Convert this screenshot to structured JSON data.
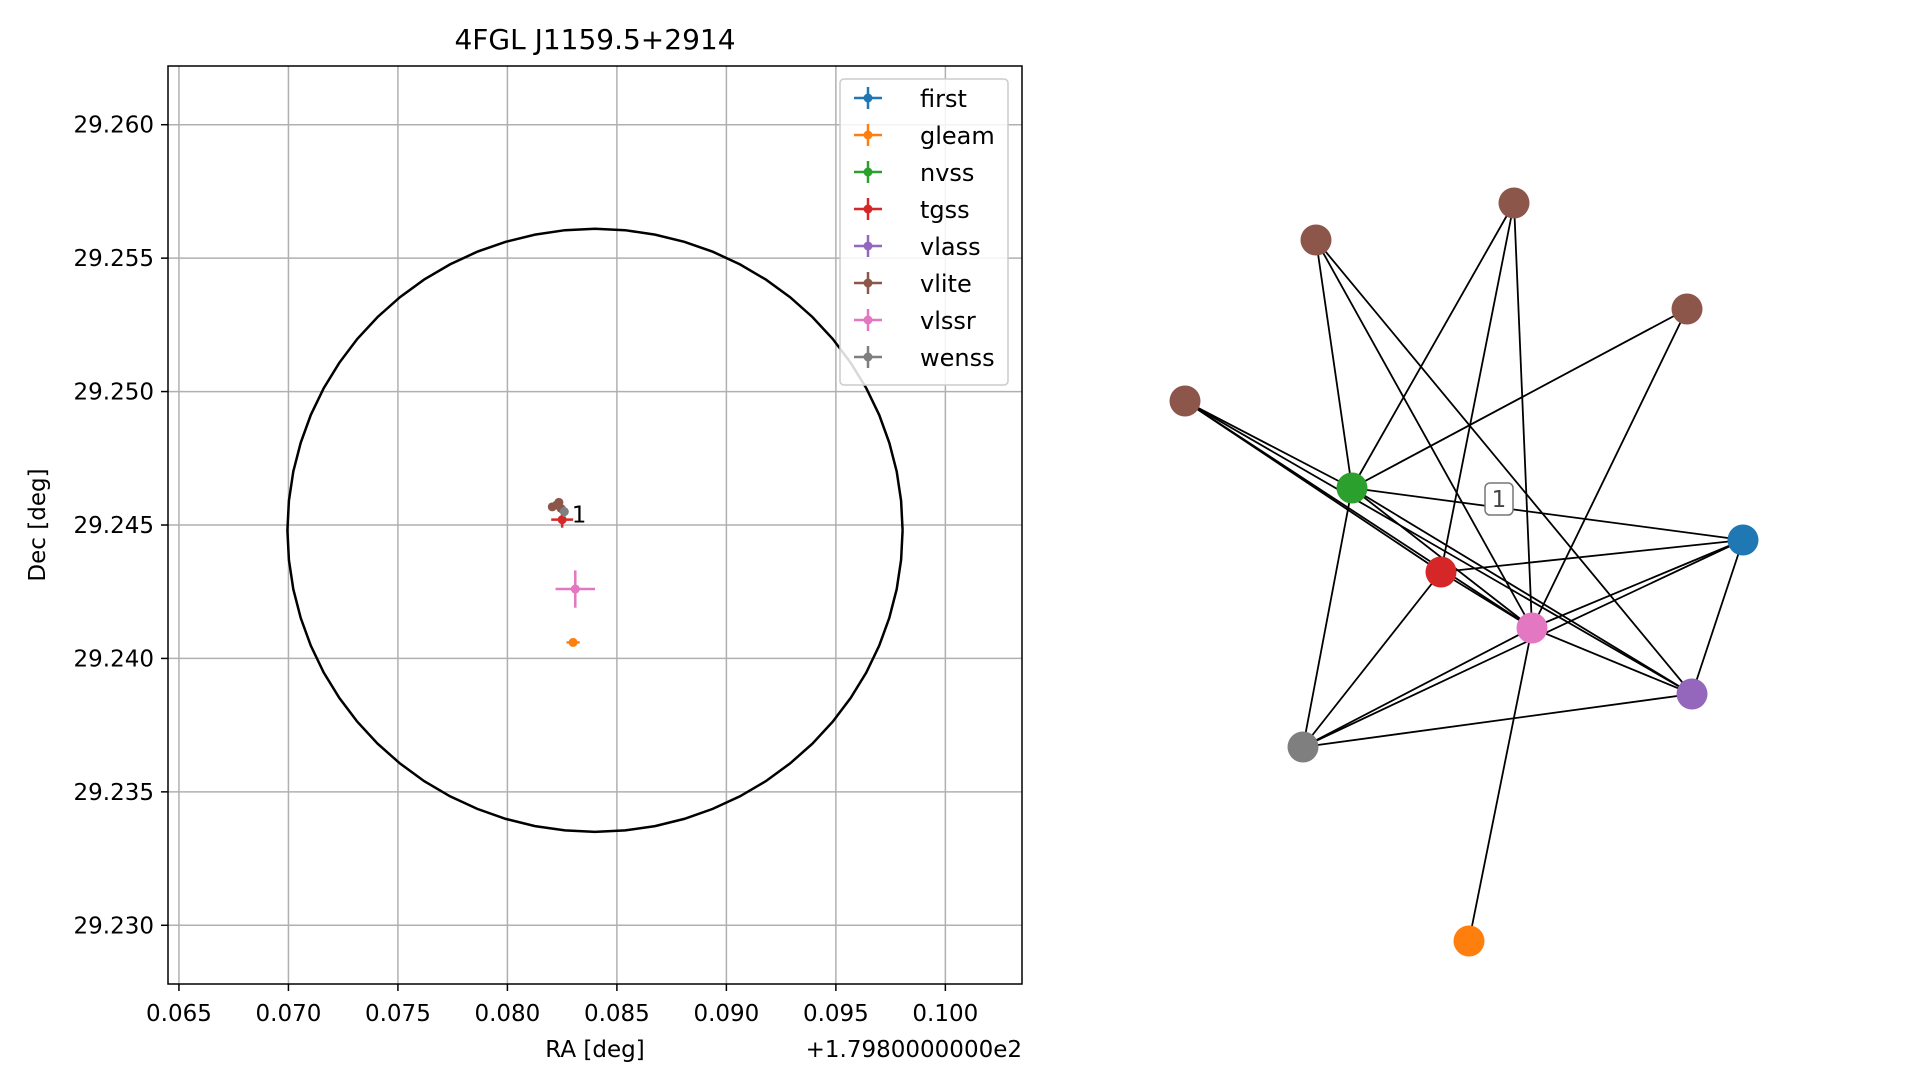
{
  "chart_data": [
    {
      "type": "scatter",
      "title": "4FGL J1159.5+2914",
      "xlabel": "RA [deg]",
      "ylabel": "Dec [deg]",
      "x_offset_label": "+1.7980000000e2",
      "xlim": [
        0.0645,
        0.1035
      ],
      "ylim": [
        29.2278,
        29.2622
      ],
      "xticks": [
        0.065,
        0.07,
        0.075,
        0.08,
        0.085,
        0.09,
        0.095,
        0.1
      ],
      "xtick_labels": [
        "0.065",
        "0.070",
        "0.075",
        "0.080",
        "0.085",
        "0.090",
        "0.095",
        "0.100"
      ],
      "yticks": [
        29.23,
        29.235,
        29.24,
        29.245,
        29.25,
        29.255,
        29.26
      ],
      "ytick_labels": [
        "29.230",
        "29.235",
        "29.240",
        "29.245",
        "29.250",
        "29.255",
        "29.260"
      ],
      "grid": true,
      "legend_position": "top-right",
      "circle": {
        "center": [
          0.084,
          29.2448
        ],
        "radius_dec": 0.0113,
        "color": "#000000"
      },
      "annotation": {
        "text": "1",
        "x": 0.0828,
        "y": 29.2454
      },
      "series": [
        {
          "name": "first",
          "color": "#1f77b4",
          "points": []
        },
        {
          "name": "gleam",
          "color": "#ff7f0e",
          "points": [
            {
              "x": 0.083,
              "y": 29.2406,
              "xerr": 0.0003,
              "yerr": 0.0001
            }
          ]
        },
        {
          "name": "nvss",
          "color": "#2ca02c",
          "points": []
        },
        {
          "name": "tgss",
          "color": "#d62728",
          "points": [
            {
              "x": 0.0825,
              "y": 29.2452,
              "xerr": 0.0005,
              "yerr": 0.0003
            }
          ]
        },
        {
          "name": "vlass",
          "color": "#9467bd",
          "points": []
        },
        {
          "name": "vlite",
          "color": "#8c564b",
          "points": [
            {
              "x": 0.08205,
              "y": 29.24568,
              "xerr": 0,
              "yerr": 0
            },
            {
              "x": 0.08225,
              "y": 29.24575,
              "xerr": 0,
              "yerr": 0
            },
            {
              "x": 0.08245,
              "y": 29.24562,
              "xerr": 0,
              "yerr": 0
            },
            {
              "x": 0.08235,
              "y": 29.24585,
              "xerr": 0,
              "yerr": 0
            }
          ]
        },
        {
          "name": "vlssr",
          "color": "#e377c2",
          "points": [
            {
              "x": 0.0831,
              "y": 29.2426,
              "xerr": 0.0009,
              "yerr": 0.0007
            }
          ]
        },
        {
          "name": "wenss",
          "color": "#7f7f7f",
          "points": [
            {
              "x": 0.0826,
              "y": 29.2455,
              "xerr": 0,
              "yerr": 0.0002
            }
          ]
        }
      ]
    },
    {
      "type": "network",
      "edge_label": "1",
      "nodes": [
        {
          "id": "first",
          "color": "#1f77b4"
        },
        {
          "id": "gleam",
          "color": "#ff7f0e"
        },
        {
          "id": "nvss",
          "color": "#2ca02c"
        },
        {
          "id": "tgss",
          "color": "#d62728"
        },
        {
          "id": "vlass",
          "color": "#9467bd"
        },
        {
          "id": "vlite1",
          "color": "#8c564b"
        },
        {
          "id": "vlite2",
          "color": "#8c564b"
        },
        {
          "id": "vlite3",
          "color": "#8c564b"
        },
        {
          "id": "vlite4",
          "color": "#8c564b"
        },
        {
          "id": "vlssr",
          "color": "#e377c2"
        },
        {
          "id": "wenss",
          "color": "#7f7f7f"
        }
      ],
      "edges": [
        [
          "vlite4",
          "nvss"
        ],
        [
          "vlite4",
          "tgss"
        ],
        [
          "vlite4",
          "vlssr"
        ],
        [
          "vlite4",
          "vlass"
        ],
        [
          "vlite1",
          "nvss"
        ],
        [
          "vlite1",
          "vlssr"
        ],
        [
          "vlite1",
          "vlass"
        ],
        [
          "vlite2",
          "nvss"
        ],
        [
          "vlite2",
          "tgss"
        ],
        [
          "vlite2",
          "vlssr"
        ],
        [
          "vlite3",
          "nvss"
        ],
        [
          "vlite3",
          "vlssr"
        ],
        [
          "nvss",
          "first"
        ],
        [
          "nvss",
          "vlssr"
        ],
        [
          "nvss",
          "vlass"
        ],
        [
          "nvss",
          "wenss"
        ],
        [
          "tgss",
          "first"
        ],
        [
          "tgss",
          "vlssr"
        ],
        [
          "tgss",
          "wenss"
        ],
        [
          "first",
          "vlssr"
        ],
        [
          "first",
          "vlass"
        ],
        [
          "first",
          "wenss"
        ],
        [
          "vlssr",
          "vlass"
        ],
        [
          "vlssr",
          "wenss"
        ],
        [
          "vlssr",
          "gleam"
        ],
        [
          "wenss",
          "vlass"
        ]
      ]
    }
  ]
}
